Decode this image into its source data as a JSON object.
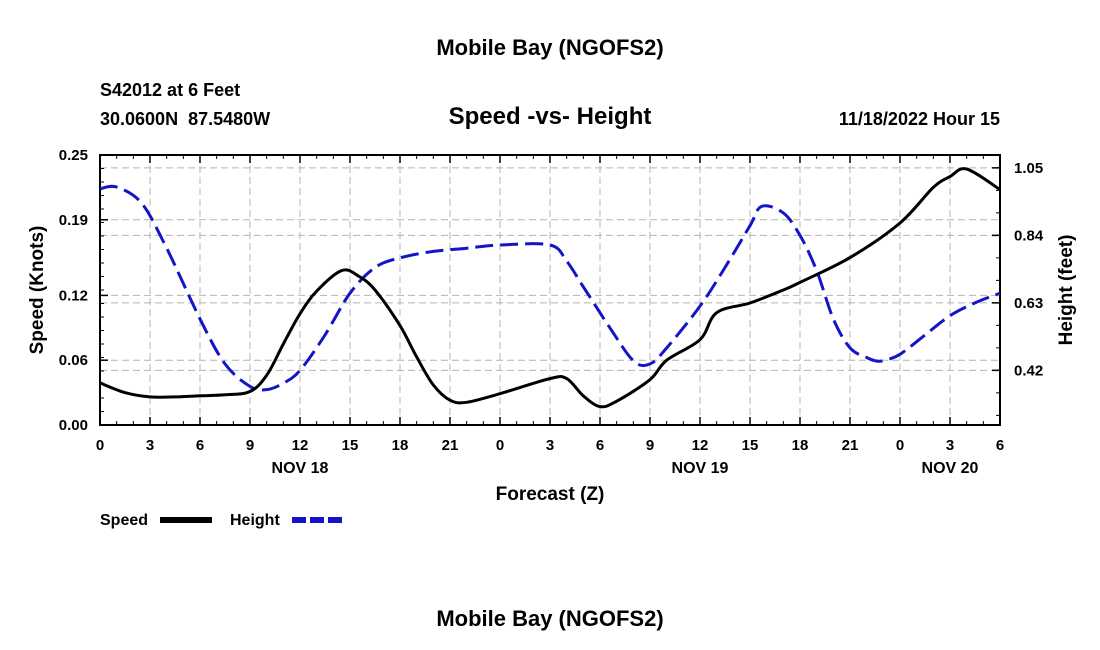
{
  "chart_data": {
    "type": "line",
    "title": "Mobile Bay (NGOFS2)",
    "footer_title": "Mobile Bay (NGOFS2)",
    "subtitle": "Speed -vs- Height",
    "station": "S42012 at 6 Feet",
    "location": "30.0600N  87.5480W",
    "datetime": "11/18/2022 Hour 15",
    "xlabel": "Forecast (Z)",
    "ylabel": "Speed (Knots)",
    "y2label": "Height (feet)",
    "xlim": [
      0,
      54
    ],
    "ylim": [
      0,
      0.25
    ],
    "y2lim": [
      0.25,
      1.09
    ],
    "x_ticks": [
      0,
      3,
      6,
      9,
      12,
      15,
      18,
      21,
      24,
      27,
      30,
      33,
      36,
      39,
      42,
      45,
      48,
      51,
      54
    ],
    "x_tick_labels": [
      "0",
      "3",
      "6",
      "9",
      "12",
      "15",
      "18",
      "21",
      "0",
      "3",
      "6",
      "9",
      "12",
      "15",
      "18",
      "21",
      "0",
      "3",
      "6"
    ],
    "day_labels": [
      {
        "x": 12,
        "label": "NOV 18"
      },
      {
        "x": 36,
        "label": "NOV 19"
      },
      {
        "x": 51,
        "label": "NOV 20"
      }
    ],
    "y_ticks": [
      0.0,
      0.06,
      0.12,
      0.19,
      0.25
    ],
    "y_tick_labels": [
      "0.00",
      "0.06",
      "0.12",
      "0.19",
      "0.25"
    ],
    "y2_ticks": [
      0.42,
      0.63,
      0.84,
      1.05
    ],
    "y2_tick_labels": [
      "0.42",
      "0.63",
      "0.84",
      "1.05"
    ],
    "grid": true,
    "series": [
      {
        "name": "Speed",
        "axis": "left",
        "color": "#000000",
        "dash": "solid",
        "x": [
          0,
          1.5,
          3,
          4.5,
          6,
          7.5,
          9,
          10,
          11,
          12,
          13,
          14.5,
          15.5,
          16.5,
          18,
          19,
          20,
          21,
          22,
          24,
          27,
          28,
          29,
          30,
          31,
          33,
          34,
          36,
          37,
          39,
          41,
          42,
          45,
          48,
          50,
          51,
          52,
          54
        ],
        "y": [
          0.039,
          0.03,
          0.026,
          0.026,
          0.027,
          0.028,
          0.031,
          0.046,
          0.075,
          0.103,
          0.124,
          0.143,
          0.138,
          0.125,
          0.092,
          0.063,
          0.037,
          0.023,
          0.021,
          0.029,
          0.043,
          0.043,
          0.027,
          0.017,
          0.022,
          0.042,
          0.06,
          0.079,
          0.104,
          0.113,
          0.125,
          0.132,
          0.155,
          0.187,
          0.22,
          0.23,
          0.237,
          0.218
        ]
      },
      {
        "name": "Height",
        "axis": "right",
        "color": "#1414c8",
        "dash": "dashed",
        "x": [
          0,
          1,
          2.5,
          4,
          6,
          7.5,
          9,
          10,
          11,
          12,
          13.5,
          15,
          16.5,
          18,
          20,
          22,
          24,
          27,
          28,
          29,
          30.5,
          32,
          33,
          34,
          36,
          37.5,
          39,
          39.7,
          41,
          42,
          43,
          44,
          45,
          46,
          46.5,
          47,
          48,
          49.5,
          51,
          52.5,
          54
        ],
        "y": [
          0.985,
          0.99,
          0.94,
          0.8,
          0.58,
          0.44,
          0.37,
          0.36,
          0.38,
          0.42,
          0.53,
          0.66,
          0.74,
          0.77,
          0.79,
          0.8,
          0.81,
          0.81,
          0.76,
          0.68,
          0.56,
          0.45,
          0.44,
          0.49,
          0.62,
          0.74,
          0.87,
          0.93,
          0.91,
          0.84,
          0.73,
          0.58,
          0.49,
          0.46,
          0.45,
          0.45,
          0.47,
          0.53,
          0.59,
          0.63,
          0.66
        ]
      }
    ],
    "legend": {
      "position": "bottom-left",
      "entries": [
        {
          "label": "Speed",
          "series": 0
        },
        {
          "label": "Height",
          "series": 1
        }
      ]
    }
  }
}
